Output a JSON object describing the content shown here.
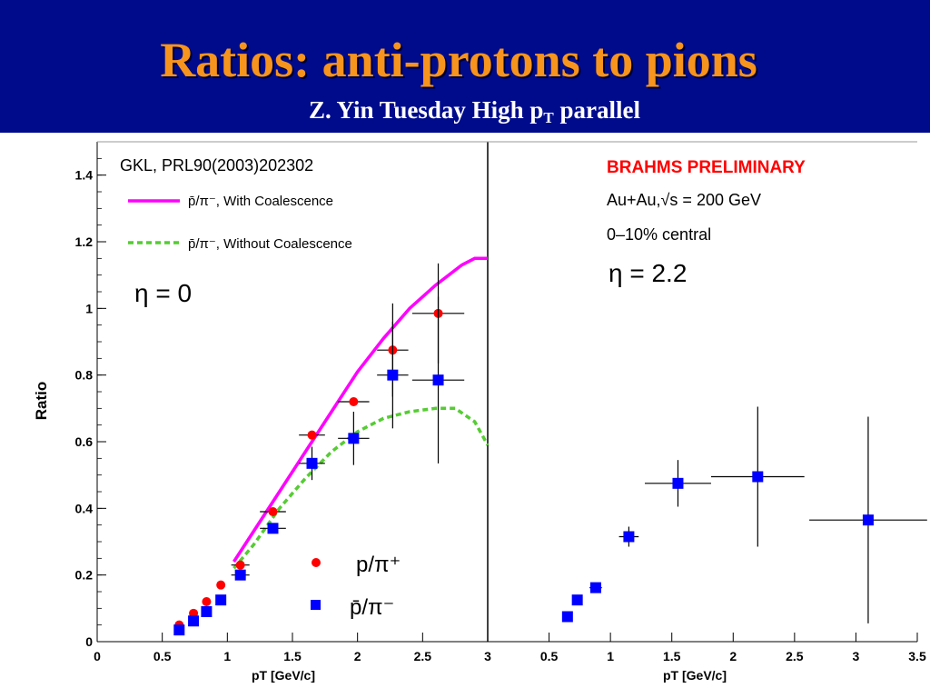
{
  "slide": {
    "title": "Ratios: anti-protons to pions",
    "subtitle_prefix": "Z. Yin Tuesday High p",
    "subtitle_sub": "T",
    "subtitle_suffix": " parallel",
    "title_color": "#f7941d",
    "header_color": "#000b8c"
  },
  "chart_data": [
    {
      "type": "scatter",
      "panel": "left",
      "title": "GKL, PRL90(2003)202302",
      "annotation": "η = 0",
      "xlabel": "pT [GeV/c]",
      "ylabel": "Ratio",
      "xlim": [
        0,
        3
      ],
      "ylim": [
        0,
        1.5
      ],
      "xticks": [
        "0",
        "0.5",
        "1",
        "1.5",
        "2",
        "2.5",
        "3"
      ],
      "yticks": [
        "0",
        "0.2",
        "0.4",
        "0.6",
        "0.8",
        "1",
        "1.2",
        "1.4"
      ],
      "legend_top": {
        "position": "top-left",
        "entries": [
          {
            "label": "p̄/π⁻, With Coalescence",
            "style": "solid",
            "color": "#ff00ff"
          },
          {
            "label": "p̄/π⁻, Without Coalescence",
            "style": "dashed",
            "color": "#55cc33"
          }
        ]
      },
      "legend_bottom": {
        "position": "bottom-right",
        "entries": [
          {
            "label": "p/π⁺",
            "marker": "circle",
            "color": "#ff0000"
          },
          {
            "label": "p̄/π⁻",
            "marker": "square",
            "color": "#0000ff"
          }
        ]
      },
      "curves": [
        {
          "name": "p̄/π⁻, With Coalescence",
          "color": "#ff00ff",
          "style": "solid",
          "x": [
            1.05,
            1.2,
            1.4,
            1.6,
            1.8,
            2.0,
            2.2,
            2.4,
            2.6,
            2.8,
            2.9,
            3.0
          ],
          "y": [
            0.24,
            0.33,
            0.45,
            0.57,
            0.69,
            0.81,
            0.91,
            1.0,
            1.07,
            1.13,
            1.15,
            1.15
          ]
        },
        {
          "name": "p̄/π⁻, Without Coalescence",
          "color": "#55cc33",
          "style": "dashed",
          "x": [
            1.05,
            1.2,
            1.4,
            1.6,
            1.8,
            2.0,
            2.2,
            2.4,
            2.6,
            2.75,
            2.9,
            3.0
          ],
          "y": [
            0.22,
            0.29,
            0.4,
            0.49,
            0.57,
            0.63,
            0.67,
            0.69,
            0.7,
            0.7,
            0.66,
            0.59
          ]
        }
      ],
      "series": [
        {
          "name": "p/π⁺",
          "marker": "circle",
          "color": "#ff0000",
          "points": [
            {
              "x": 0.63,
              "y": 0.05,
              "xerr": 0.0,
              "yerr": 0.0
            },
            {
              "x": 0.74,
              "y": 0.085,
              "xerr": 0.0,
              "yerr": 0.0
            },
            {
              "x": 0.84,
              "y": 0.12,
              "xerr": 0.0,
              "yerr": 0.0
            },
            {
              "x": 0.95,
              "y": 0.17,
              "xerr": 0.0,
              "yerr": 0.0
            },
            {
              "x": 1.1,
              "y": 0.23,
              "xerr": 0.07,
              "yerr": 0.0
            },
            {
              "x": 1.35,
              "y": 0.39,
              "xerr": 0.1,
              "yerr": 0.0
            },
            {
              "x": 1.65,
              "y": 0.62,
              "xerr": 0.1,
              "yerr": 0.0
            },
            {
              "x": 1.97,
              "y": 0.72,
              "xerr": 0.12,
              "yerr": 0.0
            },
            {
              "x": 2.27,
              "y": 0.875,
              "xerr": 0.12,
              "yerr": 0.0
            },
            {
              "x": 2.62,
              "y": 0.985,
              "xerr": 0.2,
              "yerr": 0.0
            }
          ]
        },
        {
          "name": "p̄/π⁻",
          "marker": "square",
          "color": "#0000ff",
          "points": [
            {
              "x": 0.63,
              "y": 0.035,
              "xerr": 0.0,
              "yerr": 0.0
            },
            {
              "x": 0.74,
              "y": 0.062,
              "xerr": 0.0,
              "yerr": 0.0
            },
            {
              "x": 0.84,
              "y": 0.09,
              "xerr": 0.0,
              "yerr": 0.0
            },
            {
              "x": 0.95,
              "y": 0.125,
              "xerr": 0.0,
              "yerr": 0.0
            },
            {
              "x": 1.1,
              "y": 0.2,
              "xerr": 0.07,
              "yerr": 0.0
            },
            {
              "x": 1.35,
              "y": 0.34,
              "xerr": 0.1,
              "yerr": 0.0
            },
            {
              "x": 1.65,
              "y": 0.535,
              "xerr": 0.1,
              "yerr": 0.05
            },
            {
              "x": 1.97,
              "y": 0.61,
              "xerr": 0.12,
              "yerr": 0.08
            },
            {
              "x": 2.27,
              "y": 0.8,
              "xerr": 0.12,
              "yerr": 0.16
            },
            {
              "x": 2.62,
              "y": 0.785,
              "xerr": 0.2,
              "yerr": 0.25
            }
          ]
        }
      ],
      "extra_errorbars": [
        {
          "x": 2.27,
          "y": 0.875,
          "xerr": 0.0,
          "yerr": 0.14
        },
        {
          "x": 2.62,
          "y": 0.985,
          "xerr": 0.0,
          "yerr": 0.15
        }
      ]
    },
    {
      "type": "scatter",
      "panel": "right",
      "title": "BRAHMS PRELIMINARY",
      "title_color": "#ff0000",
      "annotations": [
        "Au+Au,√s = 200 GeV",
        "0–10% central",
        "η = 2.2"
      ],
      "xlabel": "pT [GeV/c]",
      "xlim": [
        0,
        3.5
      ],
      "ylim": [
        0,
        1.5
      ],
      "xticks": [
        "0",
        "0.5",
        "1",
        "1.5",
        "2",
        "2.5",
        "3",
        "3.5"
      ],
      "series": [
        {
          "name": "p̄/π⁻",
          "marker": "square",
          "color": "#0000ff",
          "points": [
            {
              "x": 0.65,
              "y": 0.075,
              "xerr": 0.0,
              "yerr": 0.0
            },
            {
              "x": 0.73,
              "y": 0.125,
              "xerr": 0.0,
              "yerr": 0.0
            },
            {
              "x": 0.88,
              "y": 0.162,
              "xerr": 0.05,
              "yerr": 0.0
            },
            {
              "x": 1.15,
              "y": 0.315,
              "xerr": 0.08,
              "yerr": 0.03
            },
            {
              "x": 1.55,
              "y": 0.475,
              "xerr": 0.27,
              "yerr": 0.07
            },
            {
              "x": 2.2,
              "y": 0.495,
              "xerr": 0.38,
              "yerr": 0.21
            },
            {
              "x": 3.1,
              "y": 0.365,
              "xerr": 0.48,
              "yerr": 0.31
            }
          ]
        }
      ]
    }
  ]
}
